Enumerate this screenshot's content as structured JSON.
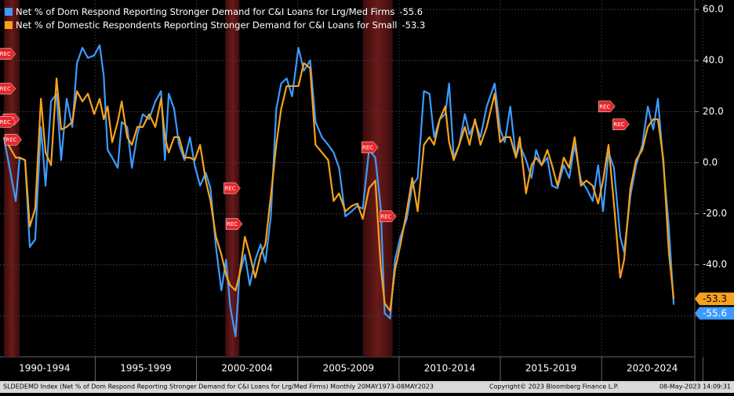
{
  "chart_data": {
    "type": "line",
    "series": [
      {
        "name": "Net % of Dom Respond Reporting Stronger Demand for C&I Loans for Lrg/Med Firms",
        "color": "#3d9bff",
        "values": [
          10,
          -15,
          2,
          1,
          -33,
          -30,
          14,
          -9,
          24,
          27,
          1,
          25,
          14,
          39,
          45,
          41,
          42,
          46,
          34,
          5,
          2,
          -2,
          16,
          14,
          -2,
          11,
          19,
          17,
          24,
          28,
          1,
          27,
          21,
          7,
          1,
          10,
          -1,
          -9,
          -4,
          -10,
          -33,
          -50,
          -38,
          -56,
          -68,
          -44,
          -36,
          -48,
          -38,
          -32,
          -39,
          -21,
          21,
          31,
          33,
          26,
          45,
          36,
          40,
          16,
          10,
          7,
          4,
          -2,
          -21,
          -19,
          -17,
          -18,
          5,
          2,
          -18,
          -59,
          -61,
          -38,
          -29,
          -22,
          -9,
          -6,
          28,
          27,
          10,
          17,
          19,
          31,
          2,
          7,
          19,
          11,
          16,
          10,
          22,
          31,
          13,
          8,
          22,
          2,
          7,
          1,
          -6,
          5,
          -1,
          2,
          -9,
          -10,
          -1,
          -6,
          7,
          -7,
          -10,
          -15,
          -1,
          -19,
          4,
          -2,
          -29,
          -35,
          -13,
          -1,
          7,
          22,
          13,
          25,
          -1,
          -25,
          -55.6
        ]
      },
      {
        "name": "Net % of Domestic Respondents Reporting Stronger Demand for C&I Loans for Small",
        "color": "#f7a21b",
        "values": [
          10,
          2,
          2,
          1,
          -25,
          -18,
          25,
          4,
          -1,
          33,
          13,
          14,
          16,
          28,
          24,
          27,
          19,
          25,
          17,
          22,
          8,
          16,
          24,
          10,
          7,
          14,
          14,
          19,
          14,
          25,
          10,
          4,
          10,
          10,
          2,
          2,
          1,
          7,
          -7,
          -15,
          -29,
          -36,
          -44,
          -48,
          -50,
          -44,
          -29,
          -36,
          -45,
          -36,
          -32,
          -13,
          7,
          21,
          30,
          30,
          30,
          39,
          37,
          7,
          4,
          1,
          -15,
          -12,
          -19,
          -17,
          -16,
          -22,
          -10,
          -7,
          -41,
          -55,
          -58,
          -42,
          -32,
          -19,
          -6,
          -19,
          7,
          10,
          7,
          17,
          22,
          8,
          1,
          7,
          14,
          7,
          17,
          7,
          14,
          27,
          8,
          10,
          10,
          2,
          10,
          -12,
          -1,
          2,
          -1,
          5,
          -1,
          -9,
          2,
          -2,
          10,
          -9,
          -7,
          -9,
          -16,
          -7,
          7,
          -16,
          -45,
          -38,
          -10,
          1,
          5,
          14,
          17,
          17,
          1,
          -35,
          -53.3
        ]
      }
    ],
    "x": [
      1990.49,
      1991.08,
      1991.27,
      1991.54,
      1991.77,
      1992.04,
      1992.32,
      1992.55,
      1992.82,
      1993.09,
      1993.32,
      1993.59,
      1993.87,
      1994.1,
      1994.37,
      1994.64,
      1994.95,
      1995.22,
      1995.42,
      1995.61,
      1995.84,
      1996.11,
      1996.31,
      1996.58,
      1996.81,
      1997.08,
      1997.35,
      1997.66,
      1997.97,
      1998.25,
      1998.44,
      1998.63,
      1998.9,
      1999.14,
      1999.41,
      1999.68,
      1999.91,
      2000.18,
      2000.46,
      2000.69,
      2000.96,
      2001.23,
      2001.46,
      2001.66,
      2001.93,
      2002.12,
      2002.39,
      2002.63,
      2002.9,
      2003.17,
      2003.4,
      2003.67,
      2003.94,
      2004.18,
      2004.45,
      2004.72,
      2005.03,
      2005.3,
      2005.61,
      2005.88,
      2006.19,
      2006.5,
      2006.77,
      2007.04,
      2007.35,
      2007.66,
      2007.94,
      2008.21,
      2008.52,
      2008.83,
      2009.1,
      2009.29,
      2009.56,
      2009.8,
      2010.07,
      2010.38,
      2010.65,
      2010.92,
      2011.23,
      2011.5,
      2011.73,
      2012.01,
      2012.28,
      2012.47,
      2012.7,
      2012.97,
      2013.25,
      2013.48,
      2013.75,
      2014.02,
      2014.33,
      2014.72,
      2014.99,
      2015.22,
      2015.49,
      2015.77,
      2015.96,
      2016.27,
      2016.54,
      2016.77,
      2017.04,
      2017.32,
      2017.55,
      2017.82,
      2018.13,
      2018.4,
      2018.67,
      2018.98,
      2019.25,
      2019.56,
      2019.83,
      2020.07,
      2020.34,
      2020.61,
      2020.92,
      2021.11,
      2021.42,
      2021.7,
      2022.01,
      2022.28,
      2022.55,
      2022.78,
      2023.05,
      2023.32,
      2023.56
    ],
    "xlim": [
      1990.3,
      2024.6
    ],
    "xticks": [
      {
        "value": 1992.5,
        "label": "1990-1994"
      },
      {
        "value": 1997.5,
        "label": "1995-1999"
      },
      {
        "value": 2002.5,
        "label": "2000-2004"
      },
      {
        "value": 2007.5,
        "label": "2005-2009"
      },
      {
        "value": 2012.5,
        "label": "2010-2014"
      },
      {
        "value": 2017.5,
        "label": "2015-2019"
      },
      {
        "value": 2022.5,
        "label": "2020-2024"
      }
    ],
    "ylim": [
      -76,
      63.7
    ],
    "yticks": [
      {
        "value": 60,
        "label": "60.0"
      },
      {
        "value": 40,
        "label": "40.0"
      },
      {
        "value": 20,
        "label": "20.0"
      },
      {
        "value": 0,
        "label": "0.0"
      },
      {
        "value": -20,
        "label": "-20.0"
      },
      {
        "value": -40,
        "label": "-40.0"
      },
      {
        "value": -60,
        "label": "-60.0"
      }
    ],
    "grid": true,
    "recessions": [
      [
        1990.49,
        1991.27
      ],
      [
        2001.42,
        2002.12
      ],
      [
        2008.21,
        2009.68
      ]
    ],
    "annotations": [
      {
        "x": 1990.6,
        "y": 42.6,
        "label": "REC"
      },
      {
        "x": 1990.6,
        "y": 29,
        "label": "REC"
      },
      {
        "x": 1990.8,
        "y": 17,
        "label": "REC"
      },
      {
        "x": 1990.6,
        "y": 16,
        "label": "REC"
      },
      {
        "x": 1990.9,
        "y": 9,
        "label": "REC"
      },
      {
        "x": 2001.7,
        "y": -10,
        "label": "REC"
      },
      {
        "x": 2001.8,
        "y": -24,
        "label": "REC"
      },
      {
        "x": 2008.5,
        "y": 6,
        "label": "REC"
      },
      {
        "x": 2009.4,
        "y": -21,
        "label": "REC"
      },
      {
        "x": 2020.2,
        "y": 22,
        "label": "REC"
      },
      {
        "x": 2020.9,
        "y": 15,
        "label": "REC"
      }
    ],
    "footer": {
      "left": "SLDEDEMD Index (Net % of Dom Respond Reporting Stronger Demand for C&I Loans for Lrg/Med Firms)  Monthly 20MAY1973-08MAY2023",
      "center": "Copyright© 2023 Bloomberg Finance L.P.",
      "right": "08-May-2023 14:09:31"
    }
  }
}
